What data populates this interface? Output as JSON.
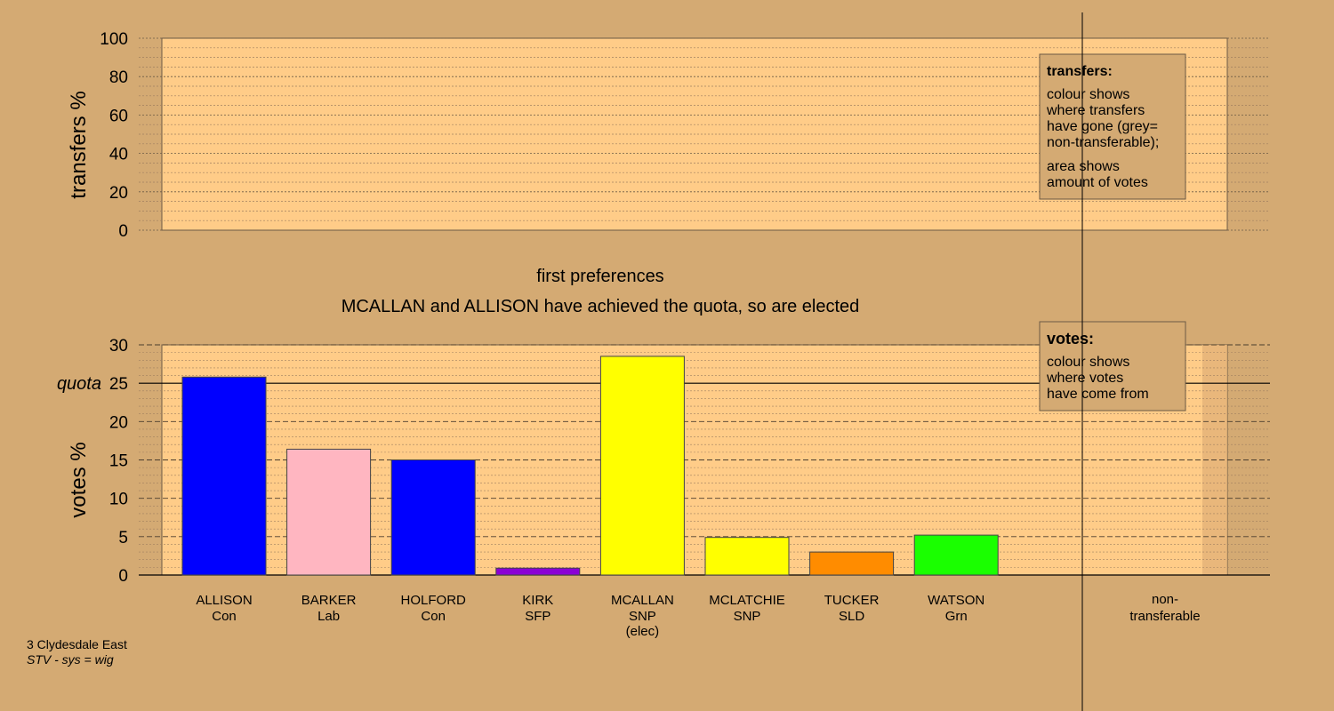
{
  "chart_data": [
    {
      "type": "area",
      "ylabel": "transfers %",
      "ylim": [
        0,
        100
      ],
      "yticks": [
        0,
        20,
        40,
        60,
        80,
        100
      ],
      "grid": true,
      "series": [],
      "legend": {
        "title": "transfers:",
        "lines": [
          "colour shows",
          "where transfers",
          "have gone (grey=",
          "non-transferable);",
          "area shows",
          "amount of votes"
        ]
      }
    },
    {
      "type": "bar",
      "title": "first preferences",
      "subtitle": "MCALLAN and ALLISON have achieved the quota, so are elected",
      "ylabel": "votes %",
      "ylim": [
        0,
        30
      ],
      "yticks": [
        0,
        5,
        10,
        15,
        20,
        25,
        30
      ],
      "quota": 25,
      "quota_label": "quota",
      "grid": true,
      "categories": [
        {
          "name": "ALLISON",
          "party": "Con",
          "note": ""
        },
        {
          "name": "BARKER",
          "party": "Lab",
          "note": ""
        },
        {
          "name": "HOLFORD",
          "party": "Con",
          "note": ""
        },
        {
          "name": "KIRK",
          "party": "SFP",
          "note": ""
        },
        {
          "name": "MCALLAN",
          "party": "SNP",
          "note": "(elec)"
        },
        {
          "name": "MCLATCHIE",
          "party": "SNP",
          "note": ""
        },
        {
          "name": "TUCKER",
          "party": "SLD",
          "note": ""
        },
        {
          "name": "WATSON",
          "party": "Grn",
          "note": ""
        }
      ],
      "values": [
        25.8,
        16.4,
        15.0,
        0.9,
        28.5,
        4.9,
        3.0,
        5.2
      ],
      "colors": [
        "#0000ff",
        "#ffb6c1",
        "#0000ff",
        "#8b00d4",
        "#ffff00",
        "#ffff00",
        "#ff8c00",
        "#1aff00"
      ],
      "nontransferable_label": [
        "non-",
        "transferable"
      ],
      "legend": {
        "title": "votes:",
        "lines": [
          "colour shows",
          "where votes",
          "have come from"
        ]
      }
    }
  ],
  "footer": {
    "ward": "3 Clydesdale East",
    "system": "STV - sys = wig"
  }
}
